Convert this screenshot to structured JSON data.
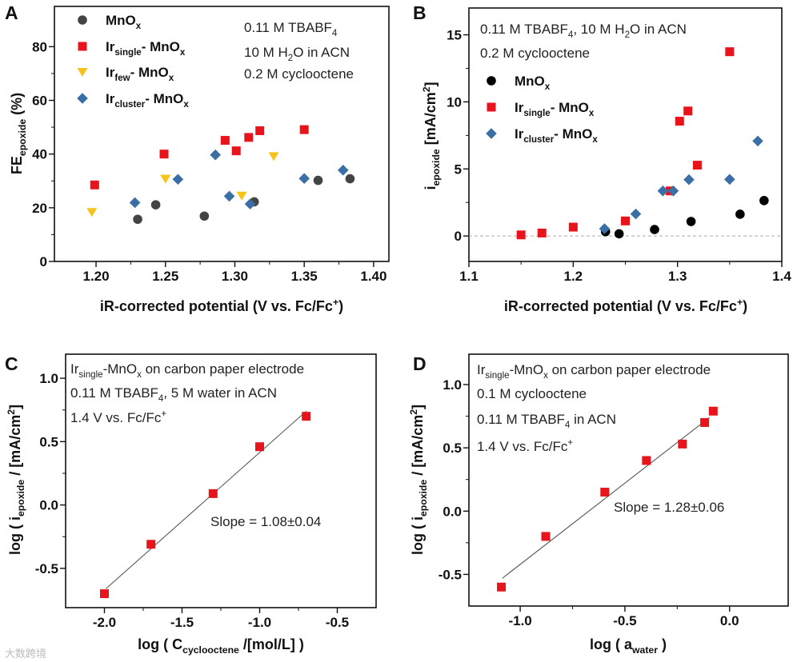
{
  "watermark": "大数跨境",
  "colors": {
    "mnox_a": "#444444",
    "mnox_b": "#000000",
    "single": "#e8141c",
    "few": "#f7c21a",
    "cluster": "#3a6ea5",
    "fit": "#555555",
    "zero": "#aaaaaa"
  },
  "chart_data": [
    {
      "panel": "A",
      "type": "scatter",
      "xlabel": [
        [
          "iR-corrected potential (V vs. Fc/Fc",
          ""
        ],
        [
          "+",
          "sup"
        ],
        [
          ")",
          ""
        ]
      ],
      "ylabel": [
        [
          "FE",
          ""
        ],
        [
          "epoxide",
          "sub"
        ],
        [
          " (%)",
          ""
        ]
      ],
      "xlim": [
        1.17,
        1.411
      ],
      "ylim": [
        0,
        95
      ],
      "xticks": [
        [
          "1.20",
          1.2
        ],
        [
          "1.25",
          1.25
        ],
        [
          "1.30",
          1.3
        ],
        [
          "1.35",
          1.35
        ],
        [
          "1.40",
          1.4
        ]
      ],
      "yticks": [
        [
          "0",
          0
        ],
        [
          "20",
          20
        ],
        [
          "40",
          40
        ],
        [
          "60",
          60
        ],
        [
          "80",
          80
        ]
      ],
      "annotations": [
        [
          [
            "0.11 M TBABF",
            ""
          ],
          [
            "4",
            "sub"
          ]
        ],
        [
          [
            "10 M H",
            ""
          ],
          [
            "2",
            "sub"
          ],
          [
            "O in ACN",
            ""
          ]
        ],
        [
          [
            "0.2 M cyclooctene",
            ""
          ]
        ]
      ],
      "series": [
        {
          "name": [
            [
              "MnO",
              ""
            ],
            [
              "x",
              "sub"
            ]
          ],
          "marker": "circle",
          "color": "#444444",
          "points": [
            [
              1.23,
              15.7
            ],
            [
              1.243,
              21.1
            ],
            [
              1.278,
              16.9
            ],
            [
              1.314,
              22.2
            ],
            [
              1.36,
              30.2
            ],
            [
              1.383,
              30.8
            ]
          ]
        },
        {
          "name": [
            [
              "Ir",
              ""
            ],
            [
              "single",
              "sub"
            ],
            [
              "- MnO",
              ""
            ],
            [
              "x",
              "sub"
            ]
          ],
          "marker": "square",
          "color": "#e8141c",
          "points": [
            [
              1.199,
              28.5
            ],
            [
              1.249,
              40.0
            ],
            [
              1.293,
              45.1
            ],
            [
              1.301,
              41.2
            ],
            [
              1.31,
              46.2
            ],
            [
              1.318,
              48.7
            ],
            [
              1.35,
              49.1
            ]
          ]
        },
        {
          "name": [
            [
              "Ir",
              ""
            ],
            [
              "few",
              "sub"
            ],
            [
              "- MnO",
              ""
            ],
            [
              "x",
              "sub"
            ]
          ],
          "marker": "triangle",
          "color": "#f7c21a",
          "points": [
            [
              1.197,
              18.4
            ],
            [
              1.25,
              30.8
            ],
            [
              1.305,
              24.5
            ],
            [
              1.328,
              39.2
            ]
          ]
        },
        {
          "name": [
            [
              "Ir",
              ""
            ],
            [
              "cluster",
              "sub"
            ],
            [
              "- MnO",
              ""
            ],
            [
              "x",
              "sub"
            ]
          ],
          "marker": "diamond",
          "color": "#3a6ea5",
          "points": [
            [
              1.228,
              21.9
            ],
            [
              1.259,
              30.6
            ],
            [
              1.286,
              39.7
            ],
            [
              1.296,
              24.3
            ],
            [
              1.311,
              21.4
            ],
            [
              1.35,
              30.9
            ],
            [
              1.378,
              34.0
            ]
          ]
        }
      ]
    },
    {
      "panel": "B",
      "type": "scatter",
      "xlabel": [
        [
          "iR-corrected potential (V vs. Fc/Fc",
          ""
        ],
        [
          "+",
          "sup"
        ],
        [
          ")",
          ""
        ]
      ],
      "ylabel": [
        [
          "i",
          ""
        ],
        [
          "epoxide",
          "sub"
        ],
        [
          " [mA/cm",
          ""
        ],
        [
          "2",
          "sup"
        ],
        [
          "]",
          ""
        ]
      ],
      "xlim": [
        1.1,
        1.4
      ],
      "ylim": [
        -1.9,
        17
      ],
      "xticks": [
        [
          "1.1",
          1.1
        ],
        [
          "1.2",
          1.2
        ],
        [
          "1.3",
          1.3
        ],
        [
          "1.4",
          1.4
        ]
      ],
      "yticks": [
        [
          "0",
          0
        ],
        [
          "5",
          5
        ],
        [
          "10",
          10
        ],
        [
          "15",
          15
        ]
      ],
      "zero_line": true,
      "annotations": [
        [
          [
            "0.11 M TBABF",
            ""
          ],
          [
            "4",
            "sub"
          ],
          [
            ", 10 M H",
            ""
          ],
          [
            "2",
            "sub"
          ],
          [
            "O in ACN",
            ""
          ]
        ],
        [
          [
            "0.2 M cyclooctene",
            ""
          ]
        ]
      ],
      "series": [
        {
          "name": [
            [
              "MnO",
              ""
            ],
            [
              "x",
              "sub"
            ]
          ],
          "marker": "circle",
          "color": "#000000",
          "points": [
            [
              1.231,
              0.32
            ],
            [
              1.244,
              0.16
            ],
            [
              1.278,
              0.48
            ],
            [
              1.313,
              1.08
            ],
            [
              1.36,
              1.62
            ],
            [
              1.383,
              2.64
            ]
          ]
        },
        {
          "name": [
            [
              "Ir",
              ""
            ],
            [
              "single",
              "sub"
            ],
            [
              "- MnO",
              ""
            ],
            [
              "x",
              "sub"
            ]
          ],
          "marker": "square",
          "color": "#e8141c",
          "points": [
            [
              1.15,
              0.08
            ],
            [
              1.17,
              0.22
            ],
            [
              1.2,
              0.66
            ],
            [
              1.25,
              1.12
            ],
            [
              1.293,
              3.36
            ],
            [
              1.302,
              8.56
            ],
            [
              1.31,
              9.32
            ],
            [
              1.319,
              5.28
            ],
            [
              1.35,
              13.74
            ]
          ]
        },
        {
          "name": [
            [
              "Ir",
              ""
            ],
            [
              "cluster",
              "sub"
            ],
            [
              "- MnO",
              ""
            ],
            [
              "x",
              "sub"
            ]
          ],
          "marker": "diamond",
          "color": "#3a6ea5",
          "points": [
            [
              1.23,
              0.54
            ],
            [
              1.26,
              1.64
            ],
            [
              1.286,
              3.36
            ],
            [
              1.296,
              3.36
            ],
            [
              1.311,
              4.2
            ],
            [
              1.35,
              4.22
            ],
            [
              1.377,
              7.08
            ]
          ]
        }
      ]
    },
    {
      "panel": "C",
      "type": "scatter",
      "xlabel": [
        [
          "log ( C",
          ""
        ],
        [
          "cyclooctene",
          "sub"
        ],
        [
          " /[mol/L] )",
          ""
        ]
      ],
      "ylabel": [
        [
          "log ( i",
          ""
        ],
        [
          "epoxide",
          "sub"
        ],
        [
          " / [mA/cm",
          ""
        ],
        [
          "2",
          "sup"
        ],
        [
          "]",
          ""
        ]
      ],
      "xlim": [
        -2.25,
        -0.25
      ],
      "ylim": [
        -0.81,
        1.19
      ],
      "xticks": [
        [
          "-2.0",
          -2.0
        ],
        [
          "-1.5",
          -1.5
        ],
        [
          "-1.0",
          -1.0
        ],
        [
          "-0.5",
          -0.5
        ]
      ],
      "yticks": [
        [
          "-0.5",
          -0.5
        ],
        [
          "0.0",
          0.0
        ],
        [
          "0.5",
          0.5
        ],
        [
          "1.0",
          1.0
        ]
      ],
      "annotations": [
        [
          [
            "Ir",
            ""
          ],
          [
            "single",
            "sub"
          ],
          [
            "-MnO",
            ""
          ],
          [
            "x",
            "sub"
          ],
          [
            " on carbon paper electrode",
            ""
          ]
        ],
        [
          [
            "0.11 M TBABF",
            ""
          ],
          [
            "4",
            "sub"
          ],
          [
            ", 5 M water in ACN",
            ""
          ]
        ],
        [
          [
            "1.4 V vs. Fc/Fc",
            ""
          ],
          [
            "+",
            "sup"
          ]
        ]
      ],
      "slope_label": "Slope = 1.08±0.04",
      "fit": [
        [
          -1.99,
          -0.66
        ],
        [
          -0.7,
          0.74
        ]
      ],
      "series": [
        {
          "name": [
            [
              "Ir-single MnOx",
              ""
            ]
          ],
          "marker": "square",
          "color": "#e8141c",
          "points": [
            [
              -2.0,
              -0.7
            ],
            [
              -1.7,
              -0.31
            ],
            [
              -1.3,
              0.09
            ],
            [
              -1.0,
              0.46
            ],
            [
              -0.7,
              0.7
            ]
          ]
        }
      ]
    },
    {
      "panel": "D",
      "type": "scatter",
      "xlabel": [
        [
          "log ( a",
          ""
        ],
        [
          "water",
          "sub"
        ],
        [
          " )",
          ""
        ]
      ],
      "ylabel": [
        [
          "log ( i",
          ""
        ],
        [
          "epoxide",
          "sub"
        ],
        [
          " / [mA/cm",
          ""
        ],
        [
          "2",
          "sup"
        ],
        [
          "]",
          ""
        ]
      ],
      "xlim": [
        -1.245,
        0.28
      ],
      "ylim": [
        -0.75,
        1.24
      ],
      "xticks": [
        [
          "-1.0",
          -1.0
        ],
        [
          "-0.5",
          -0.5
        ],
        [
          "0.0",
          0.0
        ]
      ],
      "yticks": [
        [
          "-0.5",
          -0.5
        ],
        [
          "0.0",
          0.0
        ],
        [
          "0.5",
          0.5
        ],
        [
          "1.0",
          1.0
        ]
      ],
      "annotations": [
        [
          [
            "Ir",
            ""
          ],
          [
            "single",
            "sub"
          ],
          [
            "-MnO",
            ""
          ],
          [
            "x",
            "sub"
          ],
          [
            " on carbon paper electrode",
            ""
          ]
        ],
        [
          [
            "0.1 M cyclooctene",
            ""
          ]
        ],
        [
          [
            "0.11 M TBABF",
            ""
          ],
          [
            "4",
            "sub"
          ],
          [
            " in ACN",
            ""
          ]
        ],
        [
          [
            "1.4 V vs. Fc/Fc",
            ""
          ],
          [
            "+",
            "sup"
          ]
        ]
      ],
      "slope_label": "Slope = 1.28±0.06",
      "fit": [
        [
          -1.085,
          -0.53
        ],
        [
          -0.096,
          0.74
        ]
      ],
      "series": [
        {
          "name": [
            [
              "Ir-single MnOx",
              ""
            ]
          ],
          "marker": "square",
          "color": "#e8141c",
          "points": [
            [
              -1.09,
              -0.6
            ],
            [
              -0.878,
              -0.2
            ],
            [
              -0.596,
              0.15
            ],
            [
              -0.397,
              0.4
            ],
            [
              -0.225,
              0.53
            ],
            [
              -0.119,
              0.7
            ],
            [
              -0.078,
              0.79
            ]
          ]
        }
      ]
    }
  ]
}
